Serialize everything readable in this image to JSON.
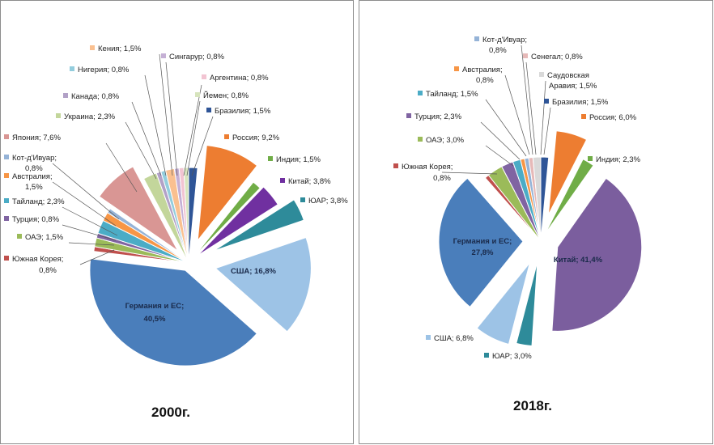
{
  "chart_data": [
    {
      "type": "pie",
      "title": "2000г.",
      "unit": "%",
      "slices": [
        {
          "name": "Бразилия",
          "value": 1.5,
          "color": "#2f5597"
        },
        {
          "name": "Россия",
          "value": 9.2,
          "color": "#ed7d31"
        },
        {
          "name": "Индия",
          "value": 1.5,
          "color": "#70ad47"
        },
        {
          "name": "Китай",
          "value": 3.8,
          "color": "#7030a0"
        },
        {
          "name": "ЮАР",
          "value": 3.8,
          "color": "#2e8b9a"
        },
        {
          "name": "США",
          "value": 16.8,
          "color": "#9dc3e6"
        },
        {
          "name": "Германия и ЕС",
          "value": 40.5,
          "color": "#4a7ebb"
        },
        {
          "name": "Южная Корея",
          "value": 0.8,
          "color": "#c0504d"
        },
        {
          "name": "ОАЭ",
          "value": 1.5,
          "color": "#9bbb59"
        },
        {
          "name": "Турция",
          "value": 0.8,
          "color": "#8064a2"
        },
        {
          "name": "Тайланд",
          "value": 2.3,
          "color": "#4bacc6"
        },
        {
          "name": "Австралия",
          "value": 1.5,
          "color": "#f79646"
        },
        {
          "name": "Кот-д'Ивуар",
          "value": 0.8,
          "color": "#95b3d7"
        },
        {
          "name": "Япония",
          "value": 7.6,
          "color": "#d99694"
        },
        {
          "name": "Украина",
          "value": 2.3,
          "color": "#c3d69b"
        },
        {
          "name": "Канада",
          "value": 0.8,
          "color": "#b2a1c7"
        },
        {
          "name": "Нигерия",
          "value": 0.8,
          "color": "#93cddd"
        },
        {
          "name": "Кения",
          "value": 1.5,
          "color": "#fac090"
        },
        {
          "name": "Сингарур",
          "value": 0.8,
          "color": "#c5b0d5"
        },
        {
          "name": "Аргентина",
          "value": 0.8,
          "color": "#f2c4d2"
        },
        {
          "name": "Йемен",
          "value": 0.8,
          "color": "#d7e4bd"
        }
      ],
      "labels": [
        {
          "text": "Кения; 1,5%"
        },
        {
          "text": "Сингарур; 0,8%"
        },
        {
          "text": "Аргентина; 0,8%"
        },
        {
          "text": "Нигерия; 0,8%"
        },
        {
          "text": "Йемен; 0,8%"
        },
        {
          "text": "Канада; 0,8%"
        },
        {
          "text": "Бразилия; 1,5%"
        },
        {
          "text": "Украина; 2,3%"
        },
        {
          "text": "Япония; 7,6%"
        },
        {
          "text": "Россия; 9,2%"
        },
        {
          "text": "Кот-д'Ивуар;"
        },
        {
          "text": "0,8%"
        },
        {
          "text": "Индия; 1,5%"
        },
        {
          "text": "Австралия;"
        },
        {
          "text": "1,5%"
        },
        {
          "text": "Китай; 3,8%"
        },
        {
          "text": "Тайланд; 2,3%"
        },
        {
          "text": "ЮАР; 3,8%"
        },
        {
          "text": "Турция; 0,8%"
        },
        {
          "text": "ОАЭ; 1,5%"
        },
        {
          "text": "Южная Корея;"
        },
        {
          "text": "0,8%"
        },
        {
          "text": "США; 16,8%"
        },
        {
          "text": "Германия и ЕС;"
        },
        {
          "text": "40,5%"
        }
      ]
    },
    {
      "type": "pie",
      "title": "2018г.",
      "unit": "%",
      "slices": [
        {
          "name": "Бразилия",
          "value": 1.5,
          "color": "#2f5597"
        },
        {
          "name": "Россия",
          "value": 6.0,
          "color": "#ed7d31"
        },
        {
          "name": "Индия",
          "value": 2.3,
          "color": "#70ad47"
        },
        {
          "name": "Китай",
          "value": 41.4,
          "color": "#7b5e9e"
        },
        {
          "name": "ЮАР",
          "value": 3.0,
          "color": "#2e8b9a"
        },
        {
          "name": "США",
          "value": 6.8,
          "color": "#9dc3e6"
        },
        {
          "name": "Германия и ЕС",
          "value": 27.8,
          "color": "#4a7ebb"
        },
        {
          "name": "Южная Корея",
          "value": 0.8,
          "color": "#c0504d"
        },
        {
          "name": "ОАЭ",
          "value": 3.0,
          "color": "#9bbb59"
        },
        {
          "name": "Турция",
          "value": 2.3,
          "color": "#8064a2"
        },
        {
          "name": "Тайланд",
          "value": 1.5,
          "color": "#4bacc6"
        },
        {
          "name": "Австралия",
          "value": 0.8,
          "color": "#f79646"
        },
        {
          "name": "Кот-д'Ивуар",
          "value": 0.8,
          "color": "#95b3d7"
        },
        {
          "name": "Сенегал",
          "value": 0.8,
          "color": "#e6b9b8"
        },
        {
          "name": "Саудовская Аравия",
          "value": 1.5,
          "color": "#d9d9d9"
        }
      ],
      "labels": [
        {
          "text": "Кот-д'Ивуар;"
        },
        {
          "text": "0,8%"
        },
        {
          "text": "Сенегал; 0,8%"
        },
        {
          "text": "Австралия;"
        },
        {
          "text": "0,8%"
        },
        {
          "text": "Саудовская"
        },
        {
          "text": "Аравия; 1,5%"
        },
        {
          "text": "Тайланд; 1,5%"
        },
        {
          "text": "Бразилия; 1,5%"
        },
        {
          "text": "Турция; 2,3%"
        },
        {
          "text": "Россия; 6,0%"
        },
        {
          "text": "ОАЭ; 3,0%"
        },
        {
          "text": "Индия; 2,3%"
        },
        {
          "text": "Южная Корея;"
        },
        {
          "text": "0,8%"
        },
        {
          "text": "Германия и ЕС;"
        },
        {
          "text": "27,8%"
        },
        {
          "text": "Китай; 41,4%"
        },
        {
          "text": "США; 6,8%"
        },
        {
          "text": "ЮАР; 3,0%"
        }
      ]
    }
  ]
}
